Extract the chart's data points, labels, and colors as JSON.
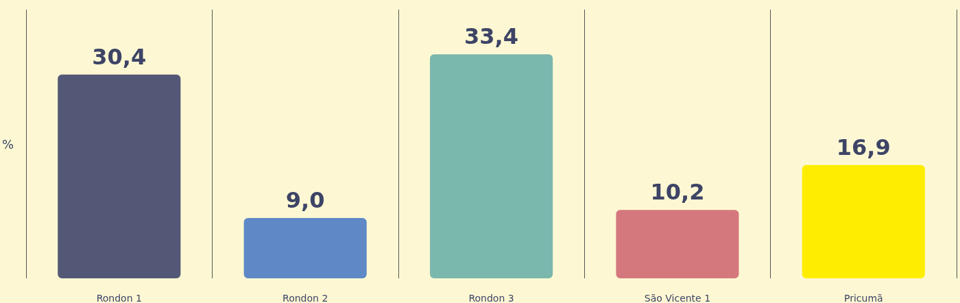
{
  "chart_data": {
    "type": "bar",
    "ylabel": "%",
    "categories": [
      "Rondon 1",
      "Rondon 2",
      "Rondon 3",
      "São Vicente 1",
      "Pricumã"
    ],
    "values": [
      30.4,
      9.0,
      33.4,
      10.2,
      16.9
    ],
    "colors": [
      "#545877",
      "#5e88c6",
      "#7ab7ad",
      "#d5787d",
      "#ffed00"
    ],
    "value_labels": [
      "30,4",
      "9,0",
      "33,4",
      "10,2",
      "16,9"
    ],
    "grid": "x"
  }
}
